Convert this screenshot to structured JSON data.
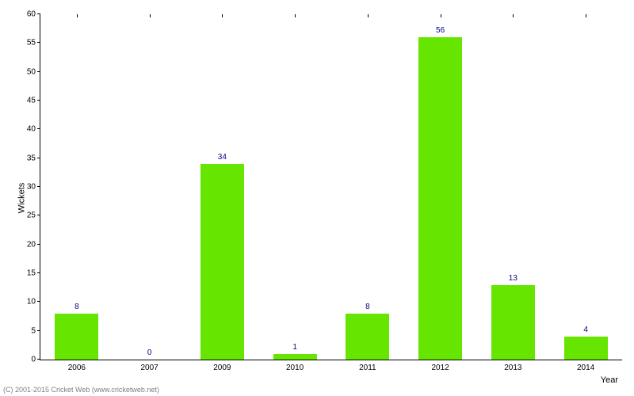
{
  "chart": {
    "type": "bar",
    "ylabel": "Wickets",
    "xlabel": "Year",
    "categories": [
      "2006",
      "2007",
      "2009",
      "2010",
      "2011",
      "2012",
      "2013",
      "2014"
    ],
    "values": [
      8,
      0,
      34,
      1,
      8,
      56,
      13,
      4
    ],
    "bar_color": "#66e500",
    "value_label_color": "#00008b",
    "axis_color": "#000000",
    "tick_font_color": "#000000",
    "background_color": "#ffffff",
    "tick_fontsize": 10,
    "label_fontsize": 11,
    "value_fontsize": 10,
    "ylim": [
      0,
      60
    ],
    "ytick_step": 5,
    "bar_width_ratio": 0.6,
    "copyright": "(C) 2001-2015 Cricket Web (www.cricketweb.net)",
    "copyright_color": "#808080"
  }
}
